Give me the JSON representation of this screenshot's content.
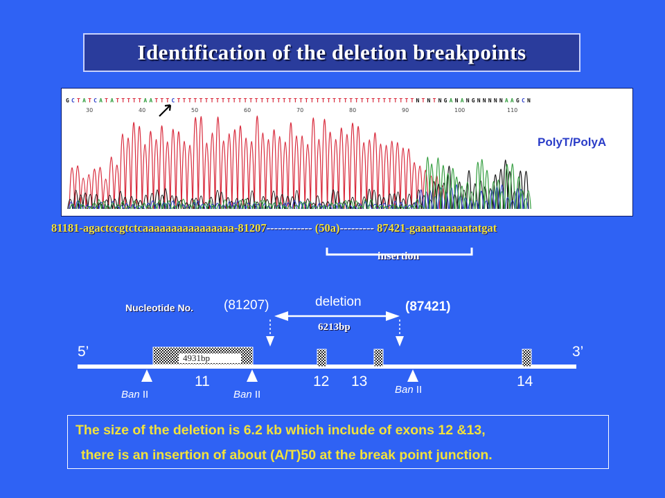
{
  "title": "Identification of the deletion breakpoints",
  "chromatogram": {
    "bases": "GCTATCATATTTTTAATTTCTTTTTTTTTTTTTTTTTTTTTTTTTTTTTTTTTTTTTTTTTTTNTNTNGANANGNNNNNAAGCN",
    "positions": [
      "30",
      "40",
      "50",
      "60",
      "70",
      "80",
      "90",
      "100",
      "110"
    ],
    "label": "PolyT/PolyA"
  },
  "sequence": {
    "left": "81181-agactccgtctcaaaaaaaaaaaaaaaa-81207",
    "dashes1": "------------",
    "middle": " (50a)",
    "dashes2": "---------",
    "right": " 87421-gaaattaaaaatatgat"
  },
  "insertion_label": "insertion",
  "map": {
    "nucleotide_label": "Nucleotide No.",
    "pos_left": "(81207)",
    "pos_right": "(87421)",
    "deletion_label": "deletion",
    "deletion_size": "6213bp",
    "five_prime": "5’",
    "three_prime": "3’",
    "exon_box_label": "4931bp",
    "exons": [
      "11",
      "12",
      "13",
      "14"
    ],
    "enzyme": "Ban",
    "enzyme_suffix": "II"
  },
  "summary": {
    "line1": "The size of the deletion is 6.2 kb which include of exons 12 &13,",
    "line2": "there is an insertion of about (A/T)50 at the break point junction."
  },
  "colors": {
    "background": "#2f62f4",
    "title_box": "#2a3c9c",
    "yellow_text": "#f2e23c",
    "trace_red": "#d8283a",
    "trace_black": "#111111",
    "trace_blue": "#2a3cc8",
    "trace_green": "#2e9b3a"
  }
}
